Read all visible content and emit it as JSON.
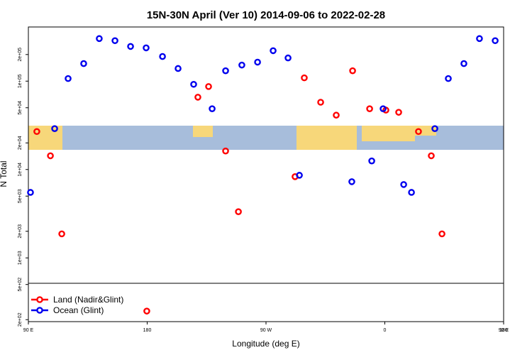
{
  "chart_data": {
    "type": "scatter",
    "title": "15N-30N April (Ver 10)   2014-09-06 to 2022-02-28",
    "x_label": "Longitude (deg E)",
    "y_label": "N Total",
    "log_y": true,
    "legend": "bottomleft",
    "xlim": [
      90,
      450
    ],
    "ylim": [
      190,
      410000
    ],
    "xticks": [
      {
        "value": 90,
        "label": "90 E"
      },
      {
        "value": 180,
        "label": "180"
      },
      {
        "value": 270,
        "label": "90 W"
      },
      {
        "value": 360,
        "label": "0"
      },
      {
        "value": 450,
        "label": "90 E"
      },
      {
        "value": 540,
        "label": "180"
      }
    ],
    "yticks": [
      {
        "value": 200,
        "label": "2e+02"
      },
      {
        "value": 500,
        "label": "5e+02"
      },
      {
        "value": 1000,
        "label": "1e+03"
      },
      {
        "value": 2000,
        "label": "2e+03"
      },
      {
        "value": 5000,
        "label": "5e+03"
      },
      {
        "value": 10000,
        "label": "1e+04"
      },
      {
        "value": 20000,
        "label": "2e+04"
      },
      {
        "value": 50000,
        "label": "5e+04"
      },
      {
        "value": 100000,
        "label": "1e+05"
      },
      {
        "value": 200000,
        "label": "2e+05"
      }
    ],
    "series": [
      {
        "name": "Land (Nadir&Glint)",
        "color": "#ff0000",
        "x": [
          96.4,
          106.7,
          115.3,
          179.7,
          218.4,
          226.5,
          239.4,
          249.1,
          292,
          299,
          311.4,
          323.2,
          335.6,
          348.5,
          360.8,
          370.5,
          385.5,
          395.2,
          403.3
        ],
        "values": [
          26900,
          14300,
          1870,
          250,
          65800,
          86900,
          16200,
          3330,
          8300,
          109000,
          57700,
          41200,
          131000,
          48700,
          47000,
          44400,
          26900,
          14300,
          1870
        ]
      },
      {
        "name": "Ocean (Glint)",
        "color": "#0000ee",
        "x": [
          91.6,
          109.9,
          120.1,
          131.9,
          143.7,
          155.6,
          167.4,
          179.2,
          191.6,
          203.4,
          215.2,
          229.2,
          239.4,
          251.7,
          263.6,
          275.4,
          286.7,
          295.3,
          335,
          350.1,
          358.7,
          374.3,
          380.2,
          397.9,
          408.1,
          419.9,
          431.7,
          443.6
        ],
        "values": [
          5510,
          29000,
          107000,
          158000,
          303000,
          287000,
          247000,
          238000,
          190000,
          139000,
          92000,
          48700,
          131000,
          152000,
          164000,
          221000,
          183000,
          8610,
          7280,
          12500,
          48700,
          6760,
          5510,
          29000,
          107000,
          158000,
          303000,
          287000
        ]
      }
    ]
  }
}
